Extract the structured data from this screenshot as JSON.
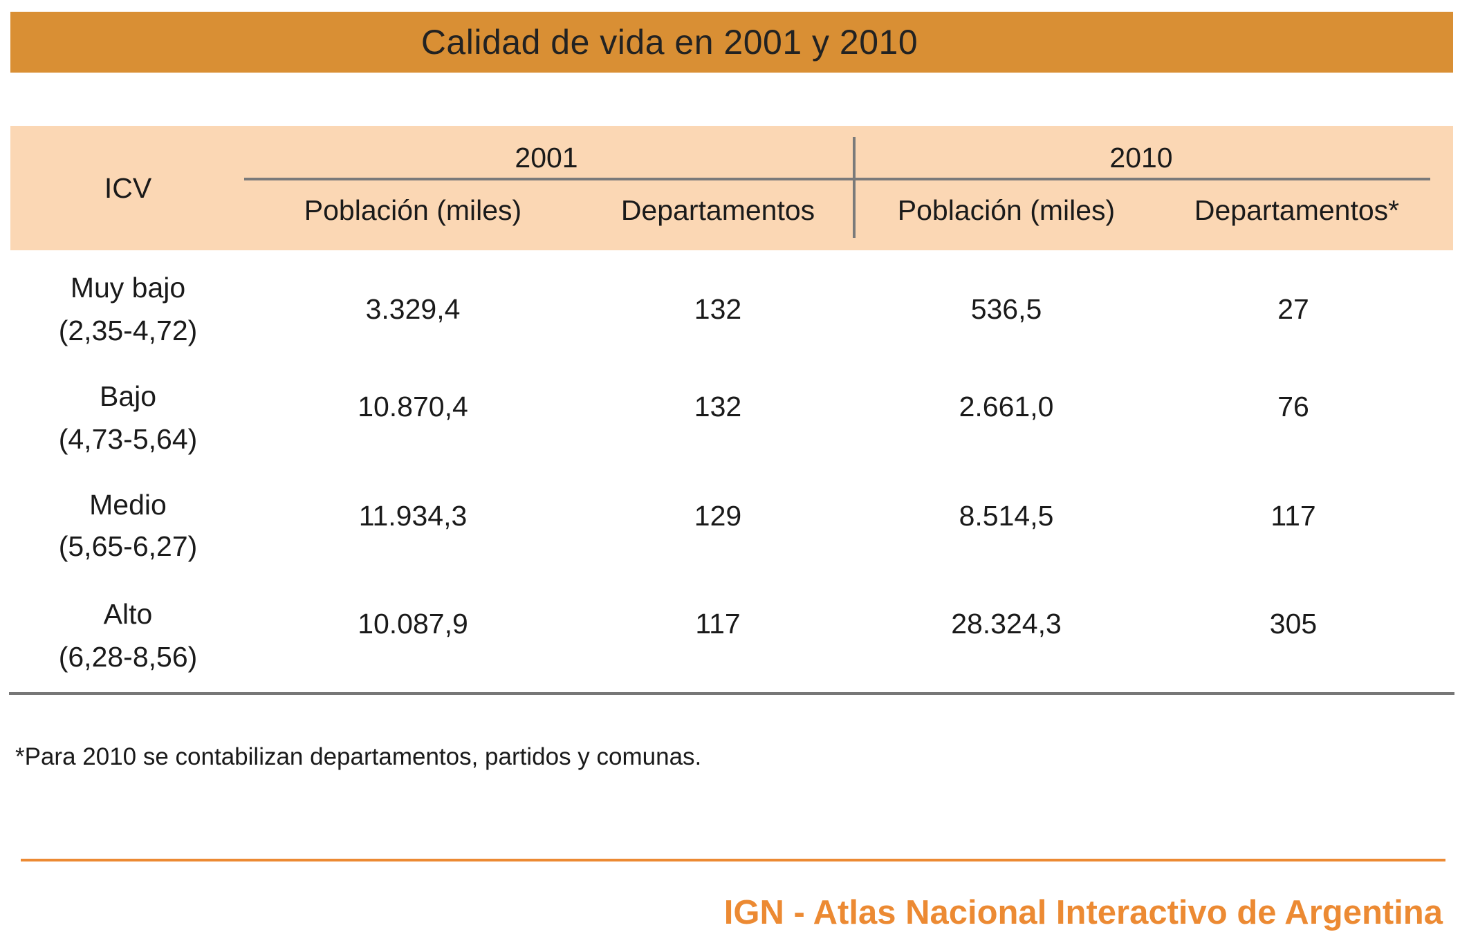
{
  "title": "Calidad de vida en 2001 y 2010",
  "header": {
    "icv": "ICV",
    "year_2001": "2001",
    "year_2010": "2010",
    "pop_2001": "Población (miles)",
    "dep_2001": "Departamentos",
    "pop_2010": "Población (miles)",
    "dep_2010": "Departamentos*"
  },
  "rows": [
    {
      "label": "Muy bajo",
      "range": "(2,35-4,72)",
      "pop_2001": "3.329,4",
      "dep_2001": "132",
      "pop_2010": "536,5",
      "dep_2010": "27"
    },
    {
      "label": "Bajo",
      "range": "(4,73-5,64)",
      "pop_2001": "10.870,4",
      "dep_2001": "132",
      "pop_2010": "2.661,0",
      "dep_2010": "76"
    },
    {
      "label": "Medio",
      "range": "(5,65-6,27)",
      "pop_2001": "11.934,3",
      "dep_2001": "129",
      "pop_2010": "8.514,5",
      "dep_2010": "117"
    },
    {
      "label": "Alto",
      "range": "(6,28-8,56)",
      "pop_2001": "10.087,9",
      "dep_2001": "117",
      "pop_2010": "28.324,3",
      "dep_2010": "305"
    }
  ],
  "footnote": "*Para 2010 se contabilizan departamentos, partidos y comunas.",
  "brand": "IGN - Atlas Nacional Interactivo de Argentina",
  "colors": {
    "title_bar": "#d98f34",
    "header_band": "#fbd7b4",
    "brand": "#ec8a33",
    "rules": "#7a7a7a"
  }
}
